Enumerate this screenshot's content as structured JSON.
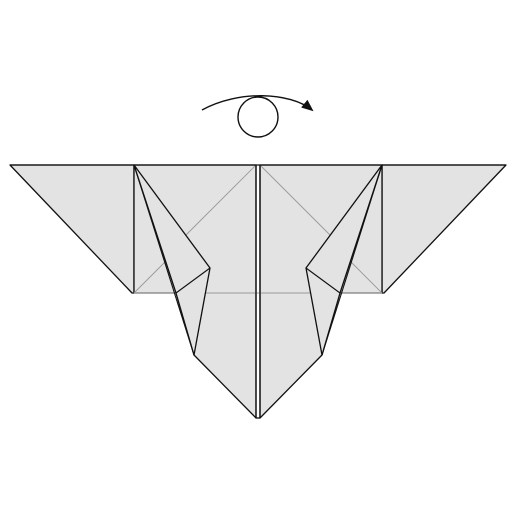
{
  "diagram": {
    "symbol": "turn-over",
    "colors": {
      "paper_fill": "#e3e3e3",
      "outline": "#111111",
      "crease": "#9a9a9a",
      "background": "#ffffff"
    }
  }
}
